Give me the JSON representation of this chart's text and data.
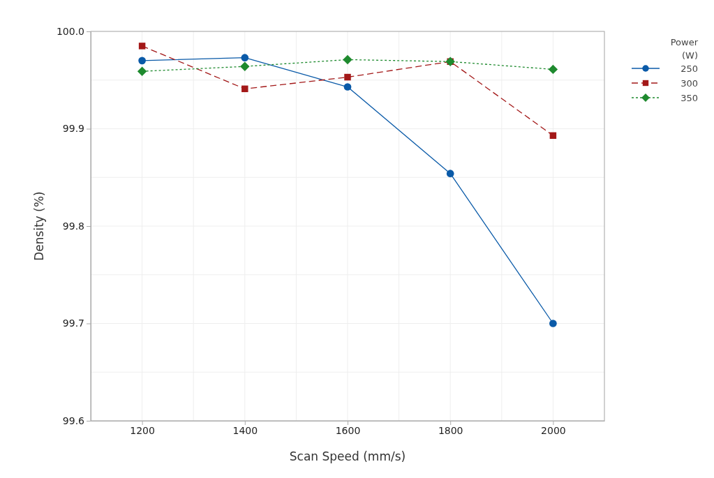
{
  "chart_data": {
    "type": "line",
    "xlabel": "Scan Speed (mm/s)",
    "ylabel": "Density (%)",
    "legend_title": "Power (W)",
    "legend": "top right",
    "grid": true,
    "x": [
      1200,
      1400,
      1600,
      1800,
      2000
    ],
    "xlim": [
      1100,
      2100
    ],
    "xticks": [
      {
        "value": 1100,
        "label": null
      },
      1200,
      {
        "value": 1300,
        "label": null
      },
      1400,
      {
        "value": 1500,
        "label": null
      },
      1600,
      {
        "value": 1700,
        "label": null
      },
      1800,
      {
        "value": 1900,
        "label": null
      },
      2000,
      {
        "value": 2100,
        "label": null
      }
    ],
    "ylim": [
      99.6,
      100.0
    ],
    "yticks": [
      {
        "value": 99.6,
        "label": "99.6"
      },
      {
        "value": 99.65,
        "label": null
      },
      {
        "value": 99.7,
        "label": "99.7"
      },
      {
        "value": 99.75,
        "label": null
      },
      {
        "value": 99.8,
        "label": "99.8"
      },
      {
        "value": 99.85,
        "label": null
      },
      {
        "value": 99.9,
        "label": "99.9"
      },
      {
        "value": 99.95,
        "label": null
      },
      {
        "value": 100.0,
        "label": "100.0"
      }
    ],
    "series": [
      {
        "name": "250",
        "color": "#0a5aa8",
        "marker": "circle",
        "line_style": "solid",
        "values": [
          99.97,
          99.973,
          99.943,
          99.854,
          99.7
        ]
      },
      {
        "name": "300",
        "color": "#a31818",
        "marker": "square",
        "line_style": "dashed",
        "values": [
          99.985,
          99.941,
          99.953,
          99.969,
          99.893
        ]
      },
      {
        "name": "350",
        "color": "#1e8a2e",
        "marker": "diamond",
        "line_style": "dotted",
        "values": [
          99.959,
          99.964,
          99.971,
          99.969,
          99.961
        ]
      }
    ]
  }
}
